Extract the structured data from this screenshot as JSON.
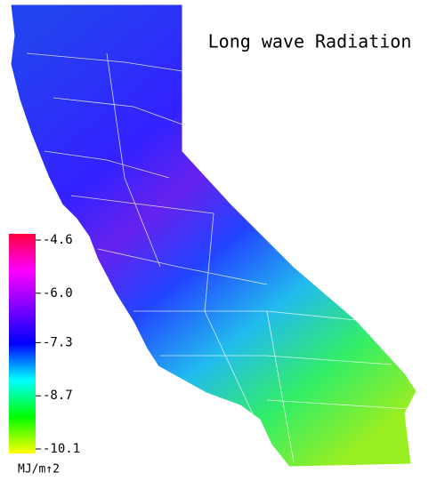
{
  "title": "Long wave Radiation",
  "colorbar": {
    "lim": [
      -10.1,
      -4.6
    ],
    "ticks": [
      -4.6,
      {
        "value": -6.0,
        "label": "-6.0"
      },
      -7.3,
      -8.7,
      -10.1
    ],
    "colors": [
      "#ffff00",
      "#00ff00",
      "#00ffff",
      "#0000ff",
      "#8000ff",
      "#ff00ff",
      "#ff0040"
    ],
    "unit": "MJ/m↑2"
  }
}
